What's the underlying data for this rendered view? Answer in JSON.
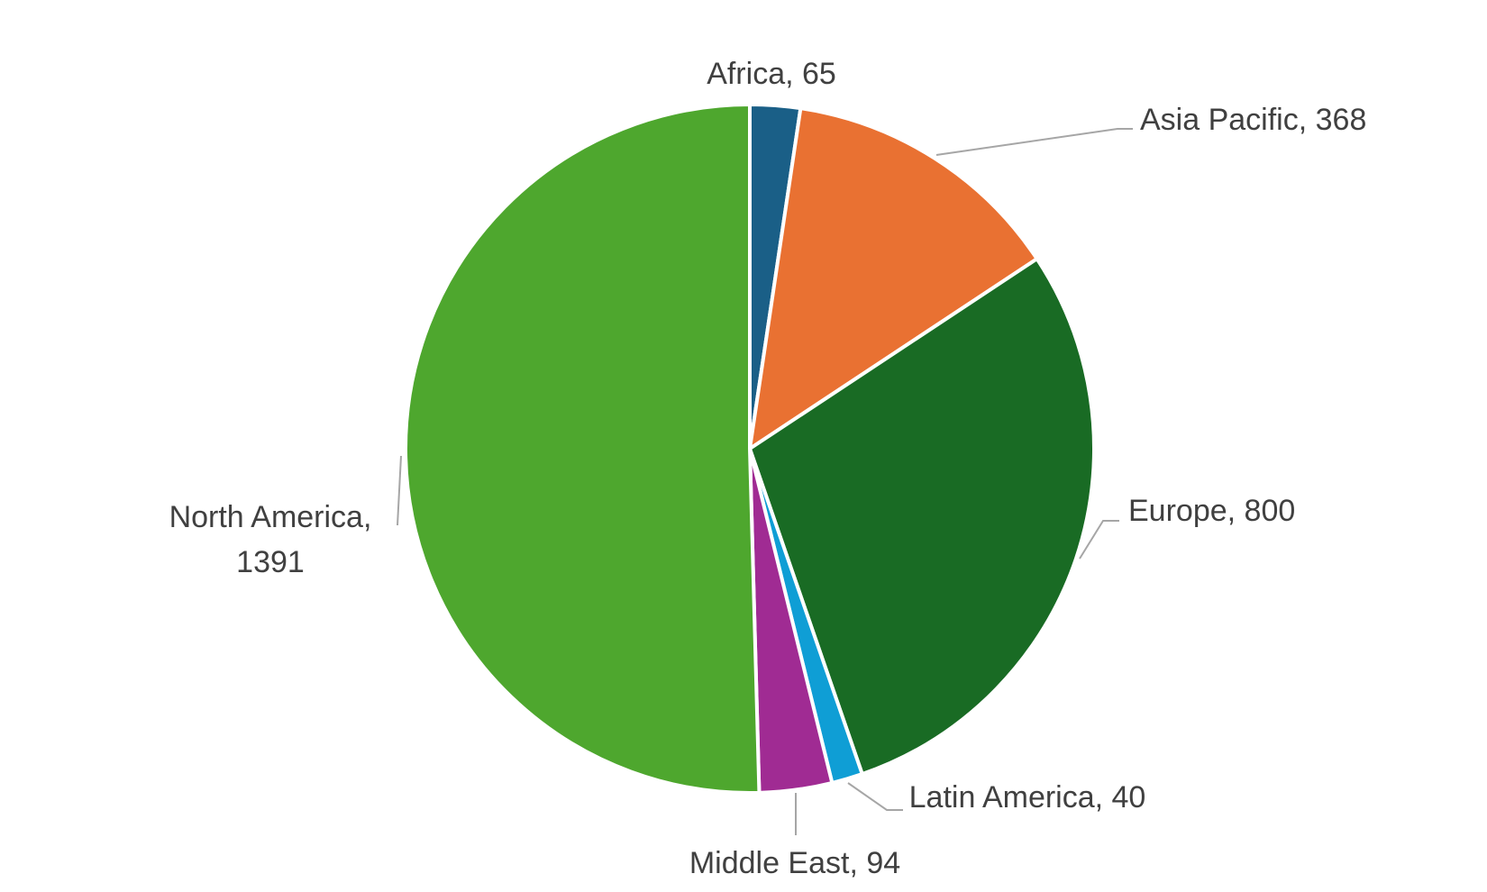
{
  "chart_data": {
    "type": "pie",
    "categories": [
      "Africa",
      "Asia Pacific",
      "Europe",
      "Latin America",
      "Middle East",
      "North America"
    ],
    "values": [
      65,
      368,
      800,
      40,
      94,
      1391
    ],
    "value_labels": [
      "Africa, 65",
      "Asia Pacific, 368",
      "Europe, 800",
      "Latin America, 40",
      "Middle East, 94",
      "North America, 1391"
    ],
    "colors": [
      "#1a5f87",
      "#e97132",
      "#196b24",
      "#0f9ed5",
      "#a02b93",
      "#4ea72e"
    ]
  }
}
